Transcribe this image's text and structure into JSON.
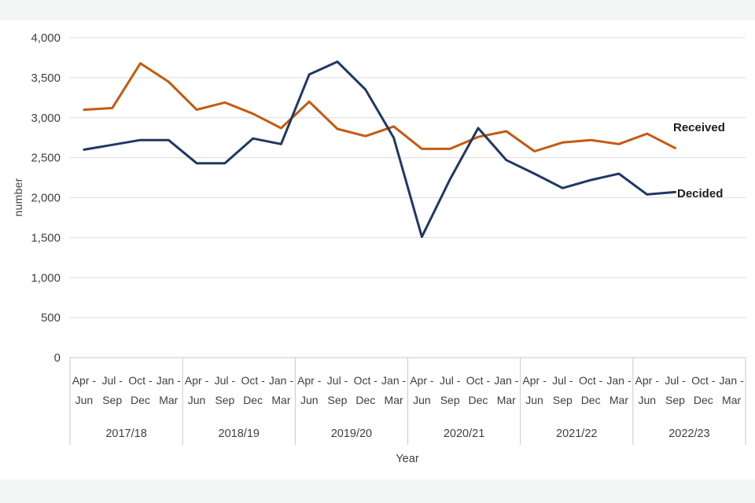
{
  "page": {
    "background_color": "#ffffff",
    "band_color": "#f4f6f6"
  },
  "chart_data": {
    "type": "line",
    "title": "",
    "ylabel": "number",
    "xlabel": "Year",
    "ylim": [
      0,
      4000
    ],
    "ytick_step": 500,
    "ytick_labels": [
      "0",
      "500",
      "1,000",
      "1,500",
      "2,000",
      "2,500",
      "3,000",
      "3,500",
      "4,000"
    ],
    "grid": true,
    "legend_position": "labels-at-line-end",
    "quarter_tick_labels": [
      [
        "Apr -",
        "Jun"
      ],
      [
        "Jul -",
        "Sep"
      ],
      [
        "Oct -",
        "Dec"
      ],
      [
        "Jan -",
        "Mar"
      ]
    ],
    "year_groups": [
      "2017/18",
      "2018/19",
      "2019/20",
      "2020/21",
      "2021/22",
      "2022/23"
    ],
    "series": [
      {
        "name": "Received",
        "color": "#c55a11",
        "values": [
          3100,
          3120,
          3680,
          3450,
          3100,
          3190,
          3050,
          2870,
          3200,
          2860,
          2770,
          2890,
          2610,
          2610,
          2760,
          2830,
          2580,
          2690,
          2720,
          2670,
          2800,
          2620,
          null,
          null
        ]
      },
      {
        "name": "Decided",
        "color": "#1f3864",
        "values": [
          2600,
          2660,
          2720,
          2720,
          2430,
          2430,
          2740,
          2670,
          3540,
          3700,
          3350,
          2750,
          1510,
          2230,
          2870,
          2470,
          2300,
          2120,
          2220,
          2300,
          2040,
          2070,
          null,
          null
        ]
      }
    ],
    "axis_text_color": "#3f3f3f",
    "gridline_color": "#dcdcdc",
    "axis_line_color": "#c9c9c9"
  }
}
